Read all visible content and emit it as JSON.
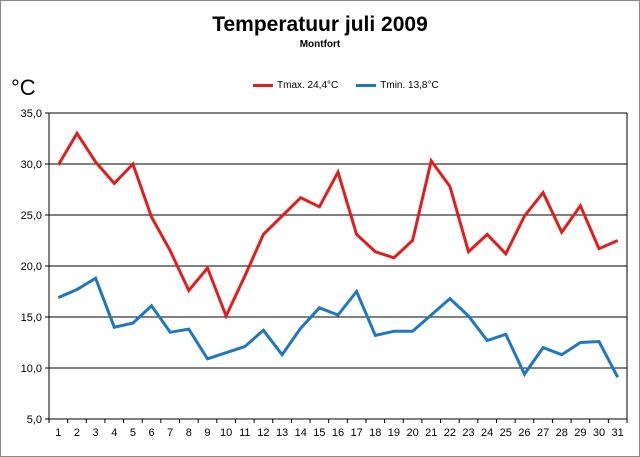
{
  "chart_data": {
    "type": "line",
    "title": "Temperatuur juli 2009",
    "subtitle": "Montfort",
    "ylabel": "°C",
    "xlabel": "",
    "ylim": [
      5,
      35
    ],
    "yticks": [
      5,
      10,
      15,
      20,
      25,
      30,
      35
    ],
    "ytick_labels": [
      "5,0",
      "10,0",
      "15,0",
      "20,0",
      "25,0",
      "30,0",
      "35,0"
    ],
    "categories": [
      "1",
      "2",
      "3",
      "4",
      "5",
      "6",
      "7",
      "8",
      "9",
      "10",
      "11",
      "12",
      "13",
      "14",
      "15",
      "16",
      "17",
      "18",
      "19",
      "20",
      "21",
      "22",
      "23",
      "24",
      "25",
      "26",
      "27",
      "28",
      "29",
      "30",
      "31"
    ],
    "legend_position": "top-center",
    "grid": true,
    "series": [
      {
        "name": "Tmax. 24,4°C",
        "color": "#e01e1e",
        "values": [
          29.9,
          33.0,
          30.2,
          28.1,
          30.0,
          24.8,
          21.5,
          17.6,
          19.8,
          15.1,
          19.0,
          23.1,
          24.9,
          26.7,
          25.8,
          29.2,
          23.1,
          21.4,
          20.8,
          22.5,
          30.3,
          27.8,
          21.4,
          23.1,
          21.2,
          24.9,
          27.2,
          23.3,
          25.9,
          21.7,
          22.5
        ]
      },
      {
        "name": "Tmin. 13,8°C",
        "color": "#1f77c0",
        "values": [
          16.9,
          17.7,
          18.8,
          14.0,
          14.4,
          16.1,
          13.5,
          13.8,
          10.9,
          11.5,
          12.1,
          13.7,
          11.3,
          13.9,
          15.9,
          15.2,
          17.5,
          13.2,
          13.6,
          13.6,
          15.2,
          16.8,
          15.1,
          12.7,
          13.3,
          9.4,
          12.0,
          11.3,
          12.5,
          12.6,
          9.1
        ]
      }
    ]
  }
}
